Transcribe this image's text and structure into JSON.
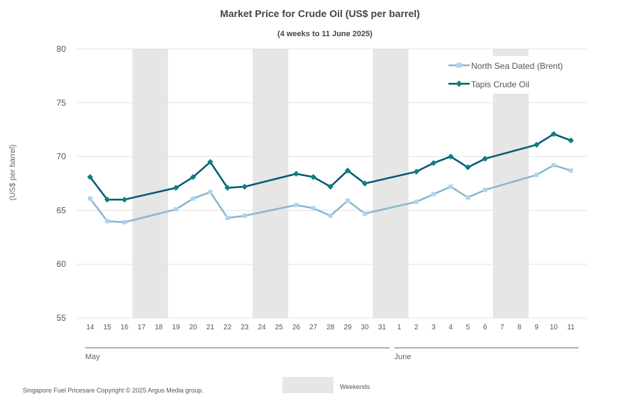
{
  "colors": {
    "brent": "#8ab6cf",
    "brent_marker": "#a9d4f5",
    "tapis": "#005a73",
    "tapis_marker": "#0a8080",
    "weekend": "#e6e6e6",
    "grid": "#e3e3e3",
    "text": "#555555",
    "title": "#444444"
  },
  "chart_data": {
    "type": "line",
    "title": "Market Price for Crude Oil (US$ per barrel)",
    "subtitle": "(4 weeks to 11 June 2025)",
    "ylabel": "(US$ per barrel)",
    "xlabel": "",
    "ylim": [
      55,
      80
    ],
    "yticks": [
      55,
      60,
      65,
      70,
      75,
      80
    ],
    "grid": true,
    "legend_position": "top-right",
    "categories": [
      "14",
      "15",
      "16",
      "17",
      "18",
      "19",
      "20",
      "21",
      "22",
      "23",
      "24",
      "25",
      "26",
      "27",
      "28",
      "29",
      "30",
      "31",
      "1",
      "2",
      "3",
      "4",
      "5",
      "6",
      "7",
      "8",
      "9",
      "10",
      "11"
    ],
    "weekend_ranges": [
      [
        3,
        4
      ],
      [
        10,
        11
      ],
      [
        17,
        18
      ],
      [
        24,
        25
      ]
    ],
    "months": [
      {
        "label": "May",
        "start": 0,
        "end": 17
      },
      {
        "label": "June",
        "start": 18,
        "end": 28
      }
    ],
    "series": [
      {
        "name": "North Sea Dated (Brent)",
        "color_key": "brent",
        "marker": "square",
        "values": [
          66.1,
          64.0,
          63.9,
          null,
          null,
          65.1,
          66.1,
          66.7,
          64.3,
          64.5,
          null,
          null,
          65.5,
          65.2,
          64.5,
          65.9,
          64.7,
          null,
          null,
          65.8,
          66.5,
          67.2,
          66.2,
          66.9,
          null,
          null,
          68.3,
          69.2,
          68.7
        ]
      },
      {
        "name": "Tapis Crude Oil",
        "color_key": "tapis",
        "marker": "diamond",
        "values": [
          68.1,
          66.0,
          66.0,
          null,
          null,
          67.1,
          68.1,
          69.5,
          67.1,
          67.2,
          null,
          null,
          68.4,
          68.1,
          67.2,
          68.7,
          67.5,
          null,
          null,
          68.6,
          69.4,
          70.0,
          69.0,
          69.8,
          null,
          null,
          71.1,
          72.1,
          71.5
        ]
      }
    ],
    "weekend_legend_label": "Weekends",
    "source_text": "Singapore Fuel Pricesare Copyright © 2025 Argus Media group."
  }
}
